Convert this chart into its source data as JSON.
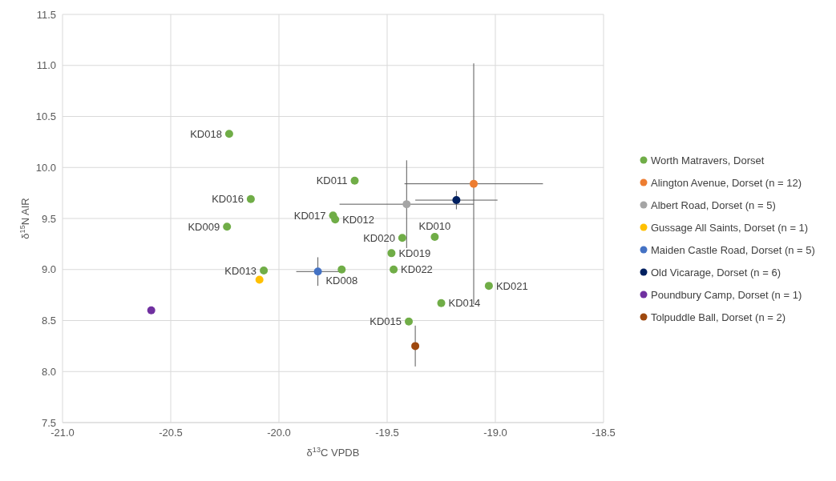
{
  "chart_data": {
    "type": "scatter",
    "xlabel": "δ$^{13}$C VPDB",
    "ylabel": "δ$^{15}$N AIR",
    "xlim": [
      -21,
      -18.5
    ],
    "xticks": [
      {
        "value": -21,
        "label": "-21.0"
      },
      {
        "value": -20.5,
        "label": "-20.5"
      },
      {
        "value": -20,
        "label": "-20.0"
      },
      {
        "value": -19.5,
        "label": "-19.5"
      },
      {
        "value": -19,
        "label": "-19.0"
      },
      {
        "value": -18.5,
        "label": "-18.5"
      }
    ],
    "ylim": [
      7.5,
      11.5
    ],
    "yticks": [
      {
        "value": 7.5,
        "label": "7.5"
      },
      {
        "value": 8,
        "label": "8.0"
      },
      {
        "value": 8.5,
        "label": "8.5"
      },
      {
        "value": 9,
        "label": "9.0"
      },
      {
        "value": 9.5,
        "label": "9.5"
      },
      {
        "value": 10,
        "label": "10.0"
      },
      {
        "value": 10.5,
        "label": "10.5"
      },
      {
        "value": 11,
        "label": "11.0"
      },
      {
        "value": 11.5,
        "label": "11.5"
      }
    ],
    "grid": true,
    "legend": "right",
    "marker": "circle",
    "series": [
      {
        "name": "Worth Matravers, Dorset",
        "color": "#70ad47",
        "x": [
          -20.23,
          -20.13,
          -20.24,
          -20.07,
          -19.65,
          -19.75,
          -19.74,
          -19.71,
          -19.43,
          -19.28,
          -19.48,
          -19.47,
          -19.03,
          -19.25,
          -19.4
        ],
        "values": [
          10.33,
          9.69,
          9.42,
          8.99,
          9.87,
          9.53,
          9.49,
          9.0,
          9.31,
          9.32,
          9.16,
          9.0,
          8.84,
          8.67,
          8.49
        ]
      },
      {
        "name": "Alington Avenue, Dorset (n = 12)",
        "color": "#ed7d31",
        "x": [
          -19.1
        ],
        "values": [
          9.84
        ],
        "xerrors": [
          0.32
        ],
        "errors": [
          1.18
        ]
      },
      {
        "name": "Albert Road, Dorset (n = 5)",
        "color": "#a5a5a5",
        "x": [
          -19.41
        ],
        "values": [
          9.64
        ],
        "xerrors": [
          0.31
        ],
        "errors": [
          0.43
        ]
      },
      {
        "name": "Gussage All Saints, Dorset (n = 1)",
        "color": "#ffc000",
        "x": [
          -20.09
        ],
        "values": [
          8.9
        ]
      },
      {
        "name": "Maiden Castle Road, Dorset (n = 5)",
        "color": "#4472c4",
        "x": [
          -19.82
        ],
        "values": [
          8.98
        ],
        "xerrors": [
          0.1
        ],
        "errors": [
          0.14
        ]
      },
      {
        "name": "Old Vicarage, Dorset (n = 6)",
        "color": "#002060",
        "x": [
          -19.18
        ],
        "values": [
          9.68
        ],
        "xerrors": [
          0.19
        ],
        "errors": [
          0.09
        ]
      },
      {
        "name": "Poundbury Camp, Dorset (n = 1)",
        "color": "#7030a0",
        "x": [
          -20.59
        ],
        "values": [
          8.6
        ]
      },
      {
        "name": "Tolpuddle Ball, Dorset (n = 2)",
        "color": "#9e480e",
        "x": [
          -19.37
        ],
        "values": [
          8.25
        ],
        "errors": [
          0.2
        ]
      }
    ],
    "annotations": [
      {
        "text": "KD018",
        "x": -20.23,
        "y": 10.33
      },
      {
        "text": "KD016",
        "x": -20.13,
        "y": 9.69
      },
      {
        "text": "KD009",
        "x": -20.24,
        "y": 9.42
      },
      {
        "text": "KD013",
        "x": -20.07,
        "y": 8.99
      },
      {
        "text": "KD011",
        "x": -19.65,
        "y": 9.87
      },
      {
        "text": "KD017",
        "x": -19.75,
        "y": 9.53
      },
      {
        "text": "KD012",
        "x": -19.74,
        "y": 9.49
      },
      {
        "text": "KD008",
        "x": -19.71,
        "y": 9.0
      },
      {
        "text": "KD020",
        "x": -19.43,
        "y": 9.31
      },
      {
        "text": "KD010",
        "x": -19.28,
        "y": 9.32
      },
      {
        "text": "KD019",
        "x": -19.48,
        "y": 9.16
      },
      {
        "text": "KD022",
        "x": -19.47,
        "y": 9.0
      },
      {
        "text": "KD021",
        "x": -19.03,
        "y": 8.84
      },
      {
        "text": "KD014",
        "x": -19.25,
        "y": 8.67
      },
      {
        "text": "KD015",
        "x": -19.4,
        "y": 8.49
      }
    ]
  }
}
